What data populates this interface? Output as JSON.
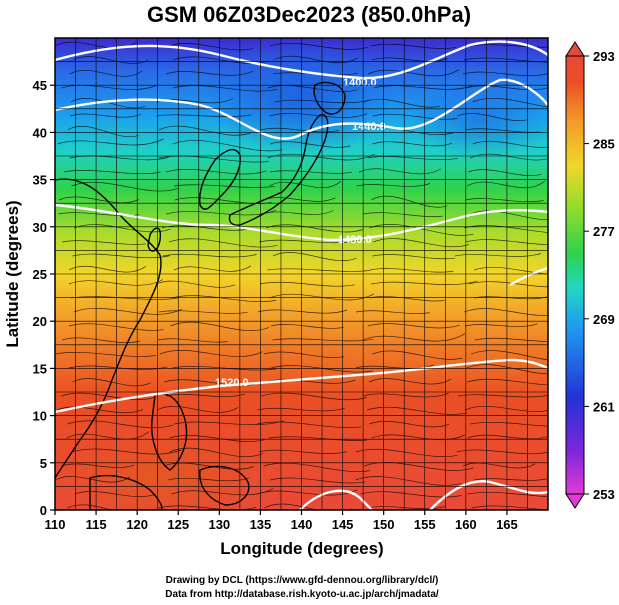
{
  "title": "GSM 06Z03Dec2023 (850.0hPa)",
  "x_axis": {
    "label": "Longitude (degrees)",
    "ticks": [
      "110",
      "115",
      "120",
      "125",
      "130",
      "135",
      "140",
      "145",
      "150",
      "155",
      "160",
      "165"
    ]
  },
  "y_axis": {
    "label": "Latitude  (degrees)",
    "ticks": [
      "0",
      "5",
      "10",
      "15",
      "20",
      "25",
      "30",
      "35",
      "40",
      "45"
    ]
  },
  "colorbar": {
    "ticks": [
      "253",
      "261",
      "269",
      "277",
      "285",
      "293"
    ],
    "colors": [
      "#e23ad6",
      "#7b27d9",
      "#2233d6",
      "#1f9af0",
      "#22d7c4",
      "#2fd24b",
      "#8fdc2c",
      "#f0d72a",
      "#f39a2a",
      "#ec4f24",
      "#e8483a"
    ]
  },
  "contour_labels": [
    "1400.0",
    "1440.0",
    "1480.0",
    "1520.0"
  ],
  "credits": {
    "line1": "Drawing by DCL (https://www.gfd-dennou.org/library/dcl/)",
    "line2": "Data from http://database.rish.kyoto-u.ac.jp/arch/jmadata/"
  },
  "chart_data": {
    "type": "heatmap",
    "title": "GSM 06Z03Dec2023 (850.0hPa)",
    "xlabel": "Longitude (degrees)",
    "ylabel": "Latitude  (degrees)",
    "xlim": [
      110,
      170
    ],
    "ylim": [
      0,
      50
    ],
    "clim": [
      253,
      293
    ],
    "grid": true,
    "fields": "temperature (shaded), geopotential height contours (white), wind streamlines (black)",
    "contour_levels": [
      1400,
      1440,
      1480,
      1520
    ]
  }
}
